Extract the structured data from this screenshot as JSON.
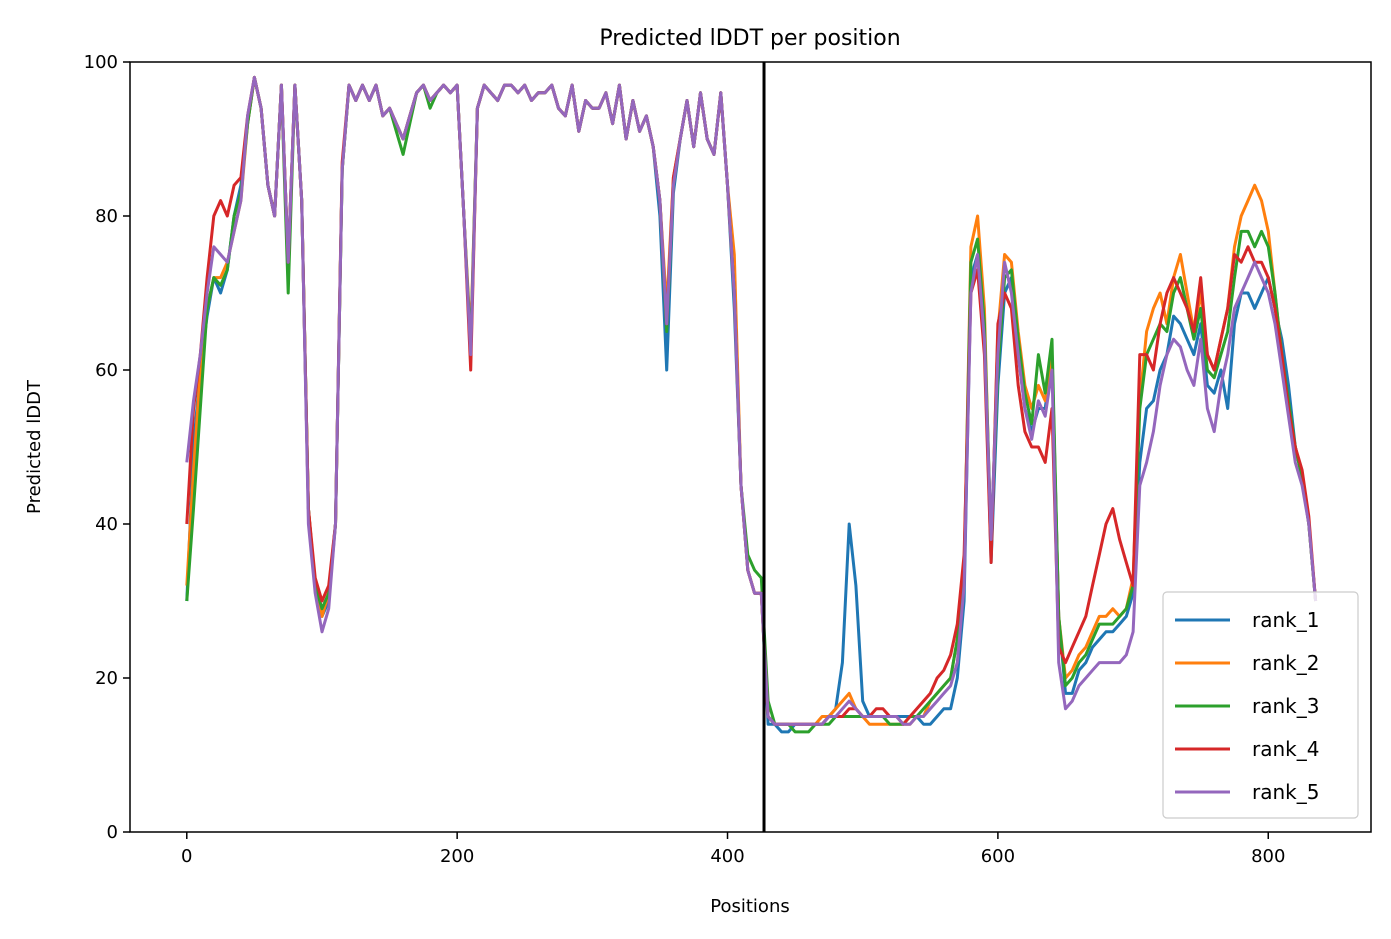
{
  "chart_data": {
    "type": "line",
    "title": "Predicted lDDT per position",
    "xlabel": "Positions",
    "ylabel": "Predicted lDDT",
    "xlim": [
      -42,
      876
    ],
    "ylim": [
      0,
      100
    ],
    "xticks": [
      0,
      200,
      400,
      600,
      800
    ],
    "yticks": [
      0,
      20,
      40,
      60,
      80,
      100
    ],
    "grid": false,
    "legend_position": "lower-right",
    "vline": {
      "x": 427,
      "color": "#000000"
    },
    "x": [
      0,
      5,
      10,
      15,
      20,
      25,
      30,
      35,
      40,
      45,
      50,
      55,
      60,
      65,
      70,
      75,
      80,
      85,
      90,
      95,
      100,
      105,
      110,
      115,
      120,
      125,
      130,
      135,
      140,
      145,
      150,
      155,
      160,
      165,
      170,
      175,
      180,
      185,
      190,
      195,
      200,
      205,
      210,
      215,
      220,
      225,
      230,
      235,
      240,
      245,
      250,
      255,
      260,
      265,
      270,
      275,
      280,
      285,
      290,
      295,
      300,
      305,
      310,
      315,
      320,
      325,
      330,
      335,
      340,
      345,
      350,
      355,
      360,
      365,
      370,
      375,
      380,
      385,
      390,
      395,
      400,
      405,
      410,
      415,
      420,
      425,
      430,
      435,
      440,
      445,
      450,
      455,
      460,
      465,
      470,
      475,
      480,
      485,
      490,
      495,
      500,
      505,
      510,
      515,
      520,
      525,
      530,
      535,
      540,
      545,
      550,
      555,
      560,
      565,
      570,
      575,
      580,
      585,
      590,
      595,
      600,
      605,
      610,
      615,
      620,
      625,
      630,
      635,
      640,
      645,
      650,
      655,
      660,
      665,
      670,
      675,
      680,
      685,
      690,
      695,
      700,
      705,
      710,
      715,
      720,
      725,
      730,
      735,
      740,
      745,
      750,
      755,
      760,
      765,
      770,
      775,
      780,
      785,
      790,
      795,
      800,
      805,
      810,
      815,
      820,
      825,
      830,
      835
    ],
    "series": [
      {
        "name": "rank_1",
        "color": "#1f77b4",
        "values": [
          30,
          50,
          60,
          67,
          72,
          70,
          73,
          80,
          84,
          92,
          98,
          94,
          84,
          80,
          97,
          74,
          97,
          82,
          42,
          32,
          28,
          30,
          40,
          86,
          97,
          95,
          97,
          95,
          97,
          93,
          94,
          92,
          90,
          93,
          96,
          97,
          95,
          96,
          97,
          96,
          97,
          80,
          62,
          94,
          97,
          96,
          95,
          97,
          97,
          96,
          97,
          95,
          96,
          96,
          97,
          94,
          93,
          97,
          91,
          95,
          94,
          94,
          96,
          92,
          97,
          90,
          95,
          91,
          93,
          89,
          80,
          60,
          83,
          90,
          95,
          89,
          96,
          90,
          88,
          96,
          84,
          68,
          45,
          34,
          31,
          31,
          14,
          14,
          13,
          13,
          14,
          14,
          14,
          14,
          14,
          15,
          16,
          22,
          40,
          32,
          17,
          15,
          15,
          15,
          15,
          15,
          15,
          15,
          15,
          14,
          14,
          15,
          16,
          16,
          20,
          30,
          72,
          75,
          65,
          35,
          58,
          70,
          72,
          62,
          55,
          52,
          55,
          55,
          62,
          28,
          18,
          18,
          21,
          22,
          24,
          25,
          26,
          26,
          27,
          28,
          31,
          48,
          55,
          56,
          60,
          62,
          67,
          66,
          64,
          62,
          66,
          58,
          57,
          60,
          55,
          66,
          70,
          70,
          68,
          70,
          72,
          68,
          64,
          58,
          50,
          46,
          40,
          30
        ]
      },
      {
        "name": "rank_2",
        "color": "#ff7f0e",
        "values": [
          32,
          47,
          60,
          68,
          72,
          72,
          74,
          78,
          82,
          92,
          98,
          94,
          84,
          80,
          97,
          74,
          97,
          82,
          42,
          32,
          28,
          31,
          40,
          86,
          97,
          95,
          97,
          95,
          97,
          93,
          94,
          92,
          90,
          93,
          96,
          97,
          95,
          96,
          97,
          96,
          97,
          80,
          64,
          94,
          97,
          96,
          95,
          97,
          97,
          96,
          97,
          95,
          96,
          96,
          97,
          94,
          93,
          97,
          91,
          95,
          94,
          94,
          96,
          92,
          97,
          90,
          95,
          91,
          93,
          89,
          82,
          68,
          85,
          90,
          95,
          89,
          96,
          90,
          88,
          96,
          84,
          75,
          45,
          34,
          31,
          31,
          15,
          14,
          14,
          14,
          14,
          14,
          14,
          14,
          15,
          15,
          16,
          17,
          18,
          16,
          15,
          14,
          14,
          14,
          14,
          14,
          14,
          14,
          15,
          15,
          17,
          18,
          19,
          20,
          25,
          34,
          76,
          80,
          68,
          36,
          65,
          75,
          74,
          65,
          58,
          55,
          58,
          56,
          62,
          28,
          20,
          21,
          23,
          24,
          26,
          28,
          28,
          29,
          28,
          29,
          33,
          56,
          65,
          68,
          70,
          66,
          72,
          75,
          70,
          65,
          70,
          62,
          60,
          64,
          68,
          76,
          80,
          82,
          84,
          82,
          78,
          70,
          62,
          55,
          50,
          46,
          40,
          30
        ]
      },
      {
        "name": "rank_3",
        "color": "#2ca02c",
        "values": [
          30,
          42,
          55,
          68,
          72,
          71,
          73,
          80,
          83,
          92,
          98,
          94,
          84,
          80,
          97,
          70,
          97,
          82,
          42,
          32,
          29,
          31,
          40,
          86,
          97,
          95,
          97,
          95,
          97,
          93,
          94,
          91,
          88,
          92,
          96,
          97,
          94,
          96,
          97,
          96,
          97,
          80,
          63,
          94,
          97,
          96,
          95,
          97,
          97,
          96,
          97,
          95,
          96,
          96,
          97,
          94,
          93,
          97,
          91,
          95,
          94,
          94,
          96,
          92,
          97,
          90,
          95,
          91,
          93,
          89,
          82,
          65,
          84,
          90,
          95,
          89,
          96,
          90,
          88,
          96,
          84,
          70,
          45,
          36,
          34,
          33,
          17,
          14,
          14,
          14,
          13,
          13,
          13,
          14,
          14,
          14,
          15,
          15,
          15,
          15,
          15,
          15,
          15,
          15,
          14,
          14,
          14,
          15,
          15,
          16,
          17,
          18,
          19,
          20,
          25,
          34,
          74,
          77,
          66,
          38,
          60,
          72,
          73,
          64,
          57,
          53,
          62,
          57,
          64,
          28,
          19,
          20,
          22,
          23,
          25,
          27,
          27,
          27,
          28,
          29,
          32,
          55,
          62,
          64,
          66,
          65,
          70,
          72,
          68,
          64,
          68,
          60,
          59,
          62,
          65,
          72,
          78,
          78,
          76,
          78,
          76,
          70,
          62,
          56,
          50,
          46,
          40,
          30
        ]
      },
      {
        "name": "rank_4",
        "color": "#d62728",
        "values": [
          40,
          55,
          62,
          72,
          80,
          82,
          80,
          84,
          85,
          93,
          98,
          94,
          84,
          80,
          97,
          74,
          97,
          82,
          42,
          33,
          30,
          32,
          40,
          87,
          97,
          95,
          97,
          95,
          97,
          93,
          94,
          92,
          90,
          93,
          96,
          97,
          95,
          96,
          97,
          96,
          97,
          80,
          60,
          94,
          97,
          96,
          95,
          97,
          97,
          96,
          97,
          95,
          96,
          96,
          97,
          94,
          93,
          97,
          91,
          95,
          94,
          94,
          96,
          92,
          97,
          90,
          95,
          91,
          93,
          89,
          82,
          66,
          85,
          90,
          95,
          89,
          96,
          90,
          88,
          96,
          84,
          70,
          45,
          34,
          31,
          31,
          15,
          14,
          14,
          14,
          14,
          14,
          14,
          14,
          14,
          15,
          15,
          15,
          16,
          16,
          15,
          15,
          16,
          16,
          15,
          15,
          14,
          15,
          16,
          17,
          18,
          20,
          21,
          23,
          27,
          36,
          70,
          73,
          62,
          35,
          66,
          70,
          68,
          58,
          52,
          50,
          50,
          48,
          55,
          24,
          22,
          24,
          26,
          28,
          32,
          36,
          40,
          42,
          38,
          35,
          32,
          62,
          62,
          60,
          66,
          70,
          72,
          70,
          68,
          65,
          72,
          62,
          60,
          64,
          68,
          75,
          74,
          76,
          74,
          74,
          72,
          68,
          62,
          55,
          50,
          47,
          41,
          30
        ]
      },
      {
        "name": "rank_5",
        "color": "#9467bd",
        "values": [
          48,
          56,
          62,
          70,
          76,
          75,
          74,
          78,
          82,
          93,
          98,
          94,
          84,
          80,
          97,
          74,
          97,
          82,
          40,
          31,
          26,
          29,
          40,
          86,
          97,
          95,
          97,
          95,
          97,
          93,
          94,
          92,
          90,
          93,
          96,
          97,
          95,
          96,
          97,
          96,
          97,
          80,
          62,
          94,
          97,
          96,
          95,
          97,
          97,
          96,
          97,
          95,
          96,
          96,
          97,
          94,
          93,
          97,
          91,
          95,
          94,
          94,
          96,
          92,
          97,
          90,
          95,
          91,
          93,
          89,
          82,
          66,
          84,
          90,
          95,
          89,
          96,
          90,
          88,
          96,
          84,
          70,
          45,
          34,
          31,
          31,
          15,
          14,
          14,
          14,
          14,
          14,
          14,
          14,
          14,
          15,
          15,
          16,
          17,
          16,
          15,
          15,
          15,
          15,
          15,
          15,
          14,
          14,
          15,
          15,
          16,
          17,
          18,
          19,
          22,
          32,
          70,
          75,
          64,
          38,
          62,
          74,
          70,
          62,
          55,
          51,
          56,
          54,
          60,
          22,
          16,
          17,
          19,
          20,
          21,
          22,
          22,
          22,
          22,
          23,
          26,
          45,
          48,
          52,
          58,
          62,
          64,
          63,
          60,
          58,
          64,
          55,
          52,
          58,
          62,
          68,
          70,
          72,
          74,
          72,
          70,
          66,
          60,
          54,
          48,
          45,
          40,
          30
        ]
      }
    ]
  }
}
